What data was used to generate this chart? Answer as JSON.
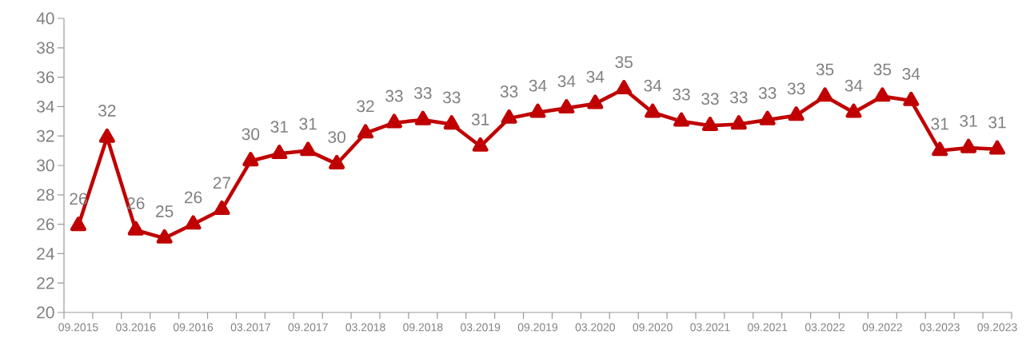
{
  "chart_data": {
    "type": "line",
    "categories": [
      "09.2015",
      null,
      "03.2016",
      null,
      "09.2016",
      null,
      "03.2017",
      null,
      "09.2017",
      null,
      "03.2018",
      null,
      "09.2018",
      null,
      "03.2019",
      null,
      "09.2019",
      null,
      "03.2020",
      null,
      "09.2020",
      null,
      "03.2021",
      null,
      "09.2021",
      null,
      "03.2022",
      null,
      "09.2022",
      null,
      "03.2023",
      null,
      "09.2023"
    ],
    "series": [
      {
        "color": "#c00000",
        "values": [
          25.9,
          31.9,
          25.6,
          25.05,
          26.0,
          27.0,
          30.3,
          30.8,
          31.0,
          30.1,
          32.2,
          32.9,
          33.1,
          32.8,
          31.3,
          33.2,
          33.6,
          33.9,
          34.2,
          35.2,
          33.6,
          33.0,
          32.7,
          32.8,
          33.1,
          33.4,
          34.7,
          33.6,
          34.7,
          34.4,
          31.0,
          31.2,
          31.1
        ],
        "value_labels": [
          "26",
          "32",
          "26",
          "25",
          "26",
          "27",
          "30",
          "31",
          "31",
          "30",
          "32",
          "33",
          "33",
          "33",
          "31",
          "33",
          "34",
          "34",
          "34",
          "35",
          "34",
          "33",
          "33",
          "33",
          "33",
          "33",
          "35",
          "34",
          "35",
          "34",
          "31",
          "31",
          "31"
        ]
      }
    ],
    "ylim": [
      20,
      40
    ],
    "yticks": [
      20,
      22,
      24,
      26,
      28,
      30,
      32,
      34,
      36,
      38,
      40
    ],
    "grid": false,
    "marker": "triangle",
    "line_style": "solid"
  }
}
